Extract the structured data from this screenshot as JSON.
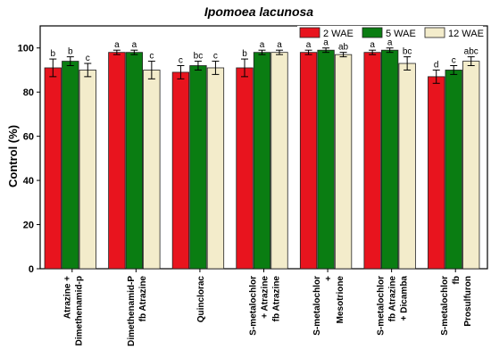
{
  "chart_data": {
    "type": "bar",
    "title": "Ipomoea lacunosa",
    "ylabel": "Control (%)",
    "xlabel": "",
    "ylim": [
      0,
      110
    ],
    "yticks": [
      0,
      20,
      40,
      60,
      80,
      100
    ],
    "legend_position": "top-right",
    "categories": [
      [
        "Atrazine +",
        "Dimethenamid-p"
      ],
      [
        "Dimethenamid-P",
        "fb Atrazine"
      ],
      [
        "Quinclorac"
      ],
      [
        "S-metalochlor",
        "+ Atrazine",
        "fb Atrazine"
      ],
      [
        "S-metalochlor",
        "+",
        "Mesotrione"
      ],
      [
        "S-metalochlor",
        "fb Atrazine",
        "+ Dicamba"
      ],
      [
        "S-metalochlor",
        "fb",
        "Prosulfuron"
      ]
    ],
    "series": [
      {
        "name": "2 WAE",
        "color": "#e8141e",
        "values": [
          91,
          98,
          89,
          91,
          98,
          98,
          87
        ],
        "errors": [
          4,
          1,
          3,
          4,
          1,
          1,
          3
        ],
        "letters": [
          "b",
          "a",
          "c",
          "b",
          "a",
          "a",
          "d"
        ]
      },
      {
        "name": "5 WAE",
        "color": "#0a7d12",
        "values": [
          94,
          98,
          92,
          98,
          99,
          99,
          90
        ],
        "errors": [
          2,
          1,
          2,
          1,
          1,
          1,
          2
        ],
        "letters": [
          "b",
          "a",
          "bc",
          "a",
          "a",
          "a",
          "c"
        ]
      },
      {
        "name": "12 WAE",
        "color": "#f3eccb",
        "values": [
          90,
          90,
          91,
          98,
          97,
          93,
          94
        ],
        "errors": [
          3,
          4,
          3,
          1,
          1,
          3,
          2
        ],
        "letters": [
          "c",
          "c",
          "c",
          "a",
          "ab",
          "bc",
          "abc"
        ]
      }
    ]
  }
}
